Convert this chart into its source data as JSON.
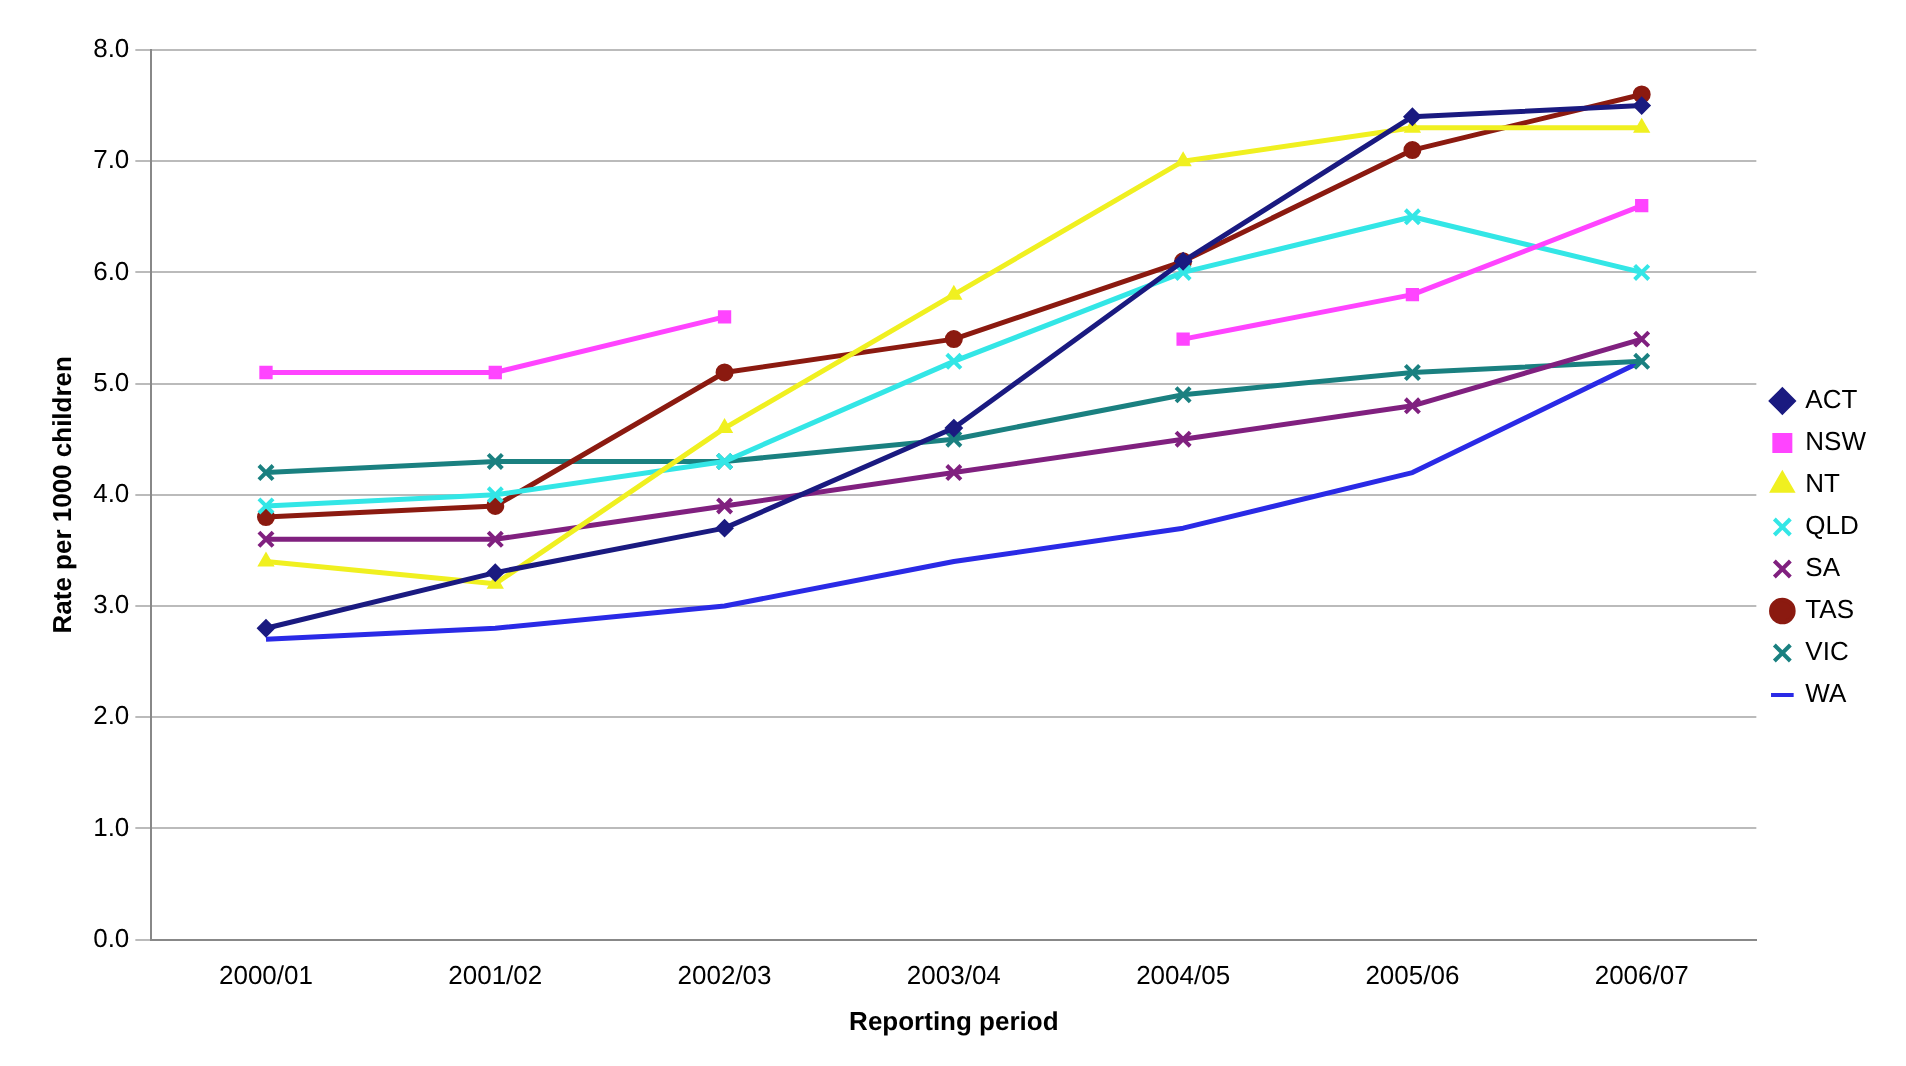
{
  "chart_data": {
    "type": "line",
    "xlabel": "Reporting period",
    "ylabel": "Rate per 1000 children",
    "categories": [
      "2000/01",
      "2001/02",
      "2002/03",
      "2003/04",
      "2004/05",
      "2005/06",
      "2006/07"
    ],
    "series": [
      {
        "name": "ACT",
        "color": "#1a1a80",
        "marker": "diamond",
        "values": [
          2.8,
          3.3,
          3.7,
          4.6,
          6.1,
          7.4,
          7.5
        ]
      },
      {
        "name": "NSW",
        "color": "#ff44ff",
        "marker": "square",
        "values": [
          5.1,
          5.1,
          5.6,
          null,
          5.4,
          5.8,
          6.6
        ]
      },
      {
        "name": "NT",
        "color": "#f0f020",
        "marker": "triangle",
        "values": [
          3.4,
          3.2,
          4.6,
          5.8,
          7.0,
          7.3,
          7.3
        ]
      },
      {
        "name": "QLD",
        "color": "#33e6e6",
        "marker": "cross",
        "values": [
          3.9,
          4.0,
          4.3,
          5.2,
          6.0,
          6.5,
          6.0
        ]
      },
      {
        "name": "SA",
        "color": "#80207f",
        "marker": "cross",
        "values": [
          3.6,
          3.6,
          3.9,
          4.2,
          4.5,
          4.8,
          5.4
        ]
      },
      {
        "name": "TAS",
        "color": "#8b1a10",
        "marker": "circle",
        "values": [
          3.8,
          3.9,
          5.1,
          5.4,
          6.1,
          7.1,
          7.6
        ]
      },
      {
        "name": "VIC",
        "color": "#1a8080",
        "marker": "cross",
        "values": [
          4.2,
          4.3,
          4.3,
          4.5,
          4.9,
          5.1,
          5.2
        ]
      },
      {
        "name": "WA",
        "color": "#2a2ae6",
        "marker": "none",
        "values": [
          2.7,
          2.8,
          3.0,
          3.4,
          3.7,
          4.2,
          5.2
        ]
      }
    ],
    "ylim": [
      0,
      8
    ],
    "yticks": [
      {
        "value": 0,
        "label": "0.0"
      },
      {
        "value": 1,
        "label": "1.0"
      },
      {
        "value": 2,
        "label": "2.0"
      },
      {
        "value": 3,
        "label": "3.0"
      },
      {
        "value": 4,
        "label": "4.0"
      },
      {
        "value": 5,
        "label": "5.0"
      },
      {
        "value": 6,
        "label": "6.0"
      },
      {
        "value": 7,
        "label": "7.0"
      },
      {
        "value": 8,
        "label": "8.0"
      }
    ],
    "grid": "y",
    "legend": "right"
  }
}
